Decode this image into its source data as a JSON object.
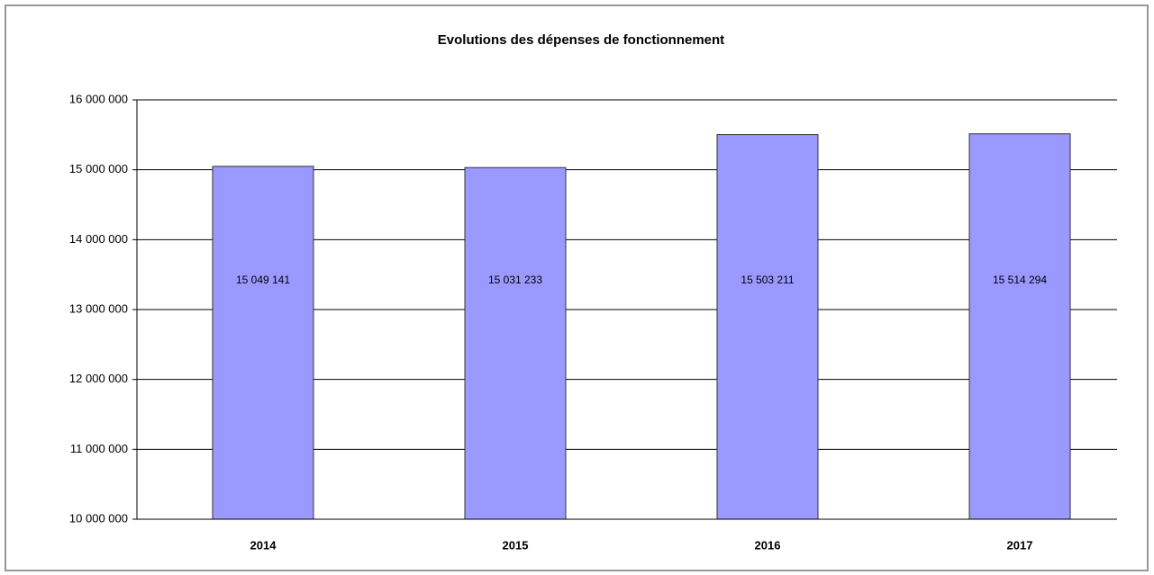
{
  "chart_data": {
    "type": "bar",
    "title": "Evolutions des dépenses de fonctionnement",
    "categories": [
      "2014",
      "2015",
      "2016",
      "2017"
    ],
    "values": [
      15049141,
      15031233,
      15503211,
      15514294
    ],
    "value_labels": [
      "15 049 141",
      "15 031 233",
      "15 503 211",
      "15 514 294"
    ],
    "color": "#9999ff",
    "ylim": [
      10000000,
      16000000
    ],
    "yticks": [
      {
        "value": 10000000,
        "label": "10 000 000"
      },
      {
        "value": 11000000,
        "label": "11 000 000"
      },
      {
        "value": 12000000,
        "label": "12 000 000"
      },
      {
        "value": 13000000,
        "label": "13 000 000"
      },
      {
        "value": 14000000,
        "label": "14 000 000"
      },
      {
        "value": 15000000,
        "label": "15 000 000"
      },
      {
        "value": 16000000,
        "label": "16 000 000"
      }
    ],
    "grid": true
  }
}
